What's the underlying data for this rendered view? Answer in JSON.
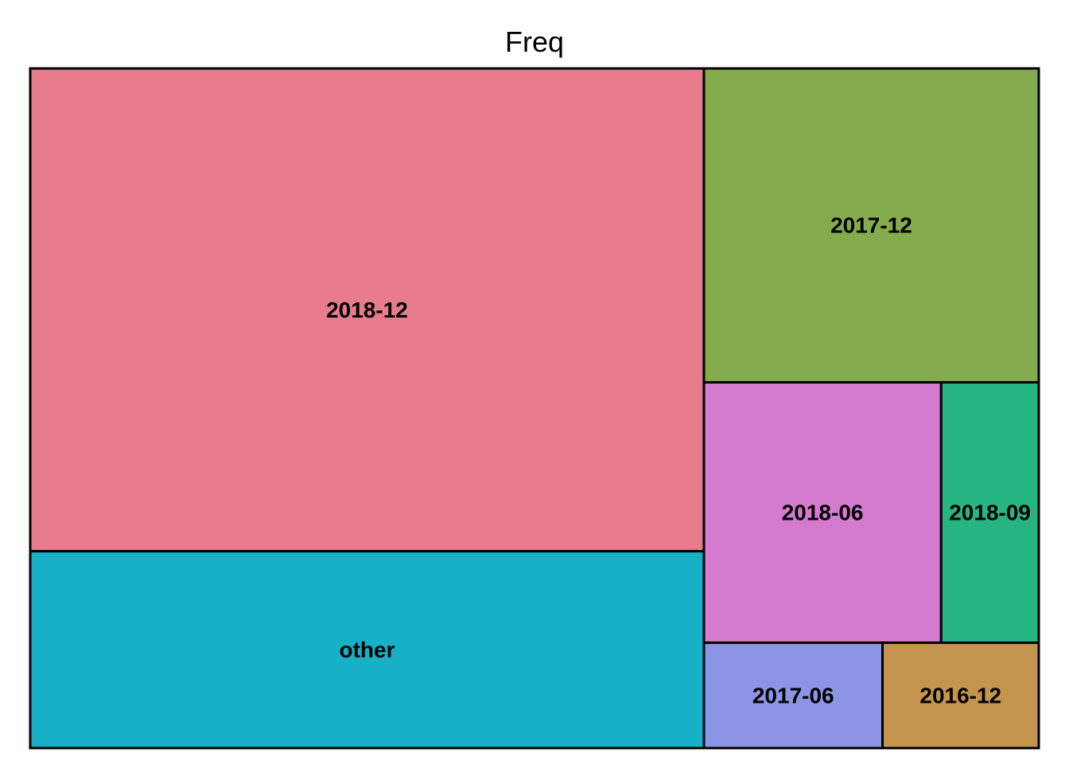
{
  "chart_data": {
    "type": "treemap",
    "title": "Freq",
    "items": [
      {
        "label": "2018-12",
        "value": 5117,
        "color": "#E67C8C"
      },
      {
        "label": "other",
        "value": 2087,
        "color": "#17B0C7"
      },
      {
        "label": "2017-12",
        "value": 1654,
        "color": "#84AC4C"
      },
      {
        "label": "2018-06",
        "value": 972,
        "color": "#D47ACF"
      },
      {
        "label": "2018-09",
        "value": 400,
        "color": "#27B584"
      },
      {
        "label": "2017-06",
        "value": 296,
        "color": "#8C94E5"
      },
      {
        "label": "2016-12",
        "value": 259,
        "color": "#C5944F"
      }
    ]
  }
}
